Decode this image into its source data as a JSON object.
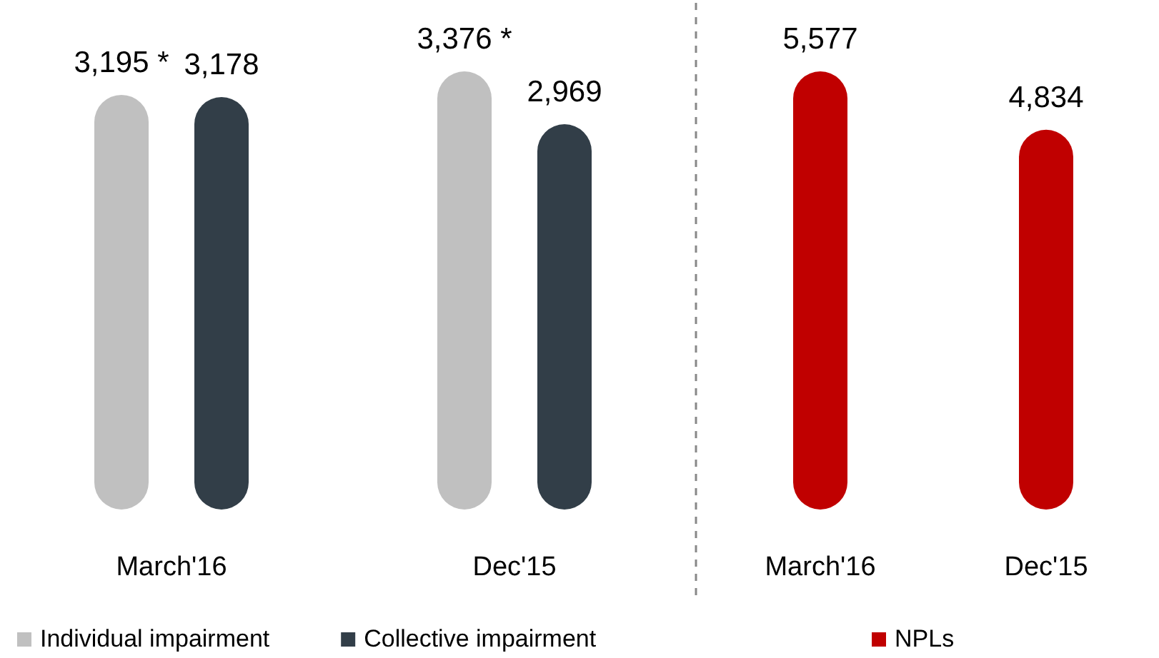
{
  "chart_data": [
    {
      "type": "bar",
      "categories": [
        "March'16",
        "Dec'15"
      ],
      "series": [
        {
          "name": "Individual impairment",
          "color": "#c0c0c0",
          "values": [
            3195,
            3376
          ],
          "value_labels": [
            "3,195 *",
            "3,376 *"
          ]
        },
        {
          "name": "Collective impairment",
          "color": "#323e48",
          "values": [
            3178,
            2969
          ],
          "value_labels": [
            "3,178",
            "2,969"
          ]
        }
      ],
      "legend": "bottom"
    },
    {
      "type": "bar",
      "categories": [
        "March'16",
        "Dec'15"
      ],
      "series": [
        {
          "name": "NPLs",
          "color": "#c00000",
          "values": [
            5577,
            4834
          ],
          "value_labels": [
            "5,577",
            "4,834"
          ]
        }
      ],
      "legend": "bottom"
    }
  ]
}
